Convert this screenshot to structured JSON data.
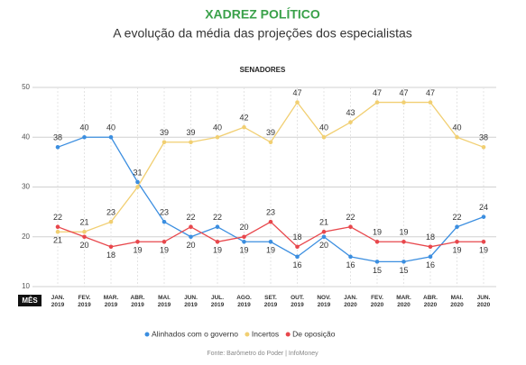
{
  "chart_data": {
    "type": "line",
    "title": "XADREZ POLÍTICO",
    "subtitle": "A evolução da média das projeções dos especialistas",
    "chart_title": "SENADORES",
    "x_label": "MÊS",
    "source": "Fonte: Barômetro do Poder | InfoMoney",
    "categories": [
      "JAN. 2019",
      "FEV. 2019",
      "MAR. 2019",
      "ABR. 2019",
      "MAI. 2019",
      "JUN. 2019",
      "JUL. 2019",
      "AGO. 2019",
      "SET. 2019",
      "OUT. 2019",
      "NOV. 2019",
      "JAN. 2020",
      "FEV. 2020",
      "MAR. 2020",
      "ABR. 2020",
      "MAI. 2020",
      "JUN. 2020"
    ],
    "series": [
      {
        "name": "Alinhados com o governo",
        "color": "#3b8ee0",
        "values": [
          38,
          40,
          40,
          31,
          23,
          20,
          22,
          19,
          19,
          16,
          20,
          16,
          15,
          15,
          16,
          22,
          24
        ]
      },
      {
        "name": "Incertos",
        "color": "#f1cf72",
        "values": [
          21,
          21,
          23,
          30,
          39,
          39,
          40,
          42,
          39,
          47,
          40,
          43,
          47,
          47,
          47,
          40,
          38
        ],
        "value_labels": [
          "21",
          "21",
          "23",
          null,
          "39",
          "39",
          "40",
          "42",
          "39",
          "47",
          "40",
          "43",
          "47",
          "47",
          "47",
          "40",
          "38"
        ]
      },
      {
        "name": "De oposição",
        "color": "#e8474c",
        "values": [
          22,
          20,
          18,
          19,
          19,
          22,
          19,
          20,
          23,
          18,
          21,
          22,
          19,
          19,
          18,
          19,
          19
        ]
      }
    ],
    "ylim": [
      10,
      50
    ],
    "yticks": [
      10,
      20,
      30,
      40,
      50
    ],
    "grid": true
  }
}
